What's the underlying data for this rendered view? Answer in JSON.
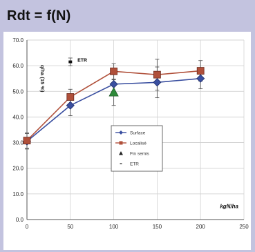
{
  "header": {
    "title": "Rdt = f(N)"
  },
  "chart_data": {
    "type": "line",
    "title": "Rdt = f(N)",
    "ylabel": "q/ha (15 %)",
    "xlabel": "kgN/ha",
    "xlim": [
      0,
      250
    ],
    "ylim": [
      0,
      70
    ],
    "xticks": [
      0,
      50,
      100,
      150,
      200,
      250
    ],
    "yticks": [
      0.0,
      10.0,
      20.0,
      30.0,
      40.0,
      50.0,
      60.0,
      70.0
    ],
    "ytick_labels": [
      "0.0",
      "10.0",
      "20.0",
      "30.0",
      "40.0",
      "50.0",
      "60.0",
      "70.0"
    ],
    "grid": true,
    "legend_position": "center",
    "series": [
      {
        "name": "Surface",
        "color": "#3a4fa0",
        "marker": "diamond",
        "x": [
          0,
          50,
          100,
          150,
          200
        ],
        "y": [
          30.5,
          44.5,
          52.8,
          53.5,
          55.0
        ],
        "err": [
          3,
          4,
          4,
          6,
          4
        ]
      },
      {
        "name": "Localisé",
        "color": "#b0503a",
        "marker": "square",
        "x": [
          0,
          50,
          100,
          150,
          200
        ],
        "y": [
          30.8,
          47.8,
          57.8,
          56.5,
          58.0
        ],
        "err": [
          3,
          3,
          3,
          6,
          4
        ]
      },
      {
        "name": "Fin semis",
        "color": "#2e8a3a",
        "marker": "triangle",
        "x": [
          100
        ],
        "y": [
          49.5
        ],
        "err": [
          5
        ]
      },
      {
        "name": "ETR",
        "color": "#111111",
        "marker": "dash",
        "x": [
          50
        ],
        "y": [
          61.5
        ],
        "err": [
          1.5
        ]
      }
    ],
    "annotations": [
      {
        "text": "ETR",
        "x": 55,
        "y": 62
      }
    ]
  }
}
